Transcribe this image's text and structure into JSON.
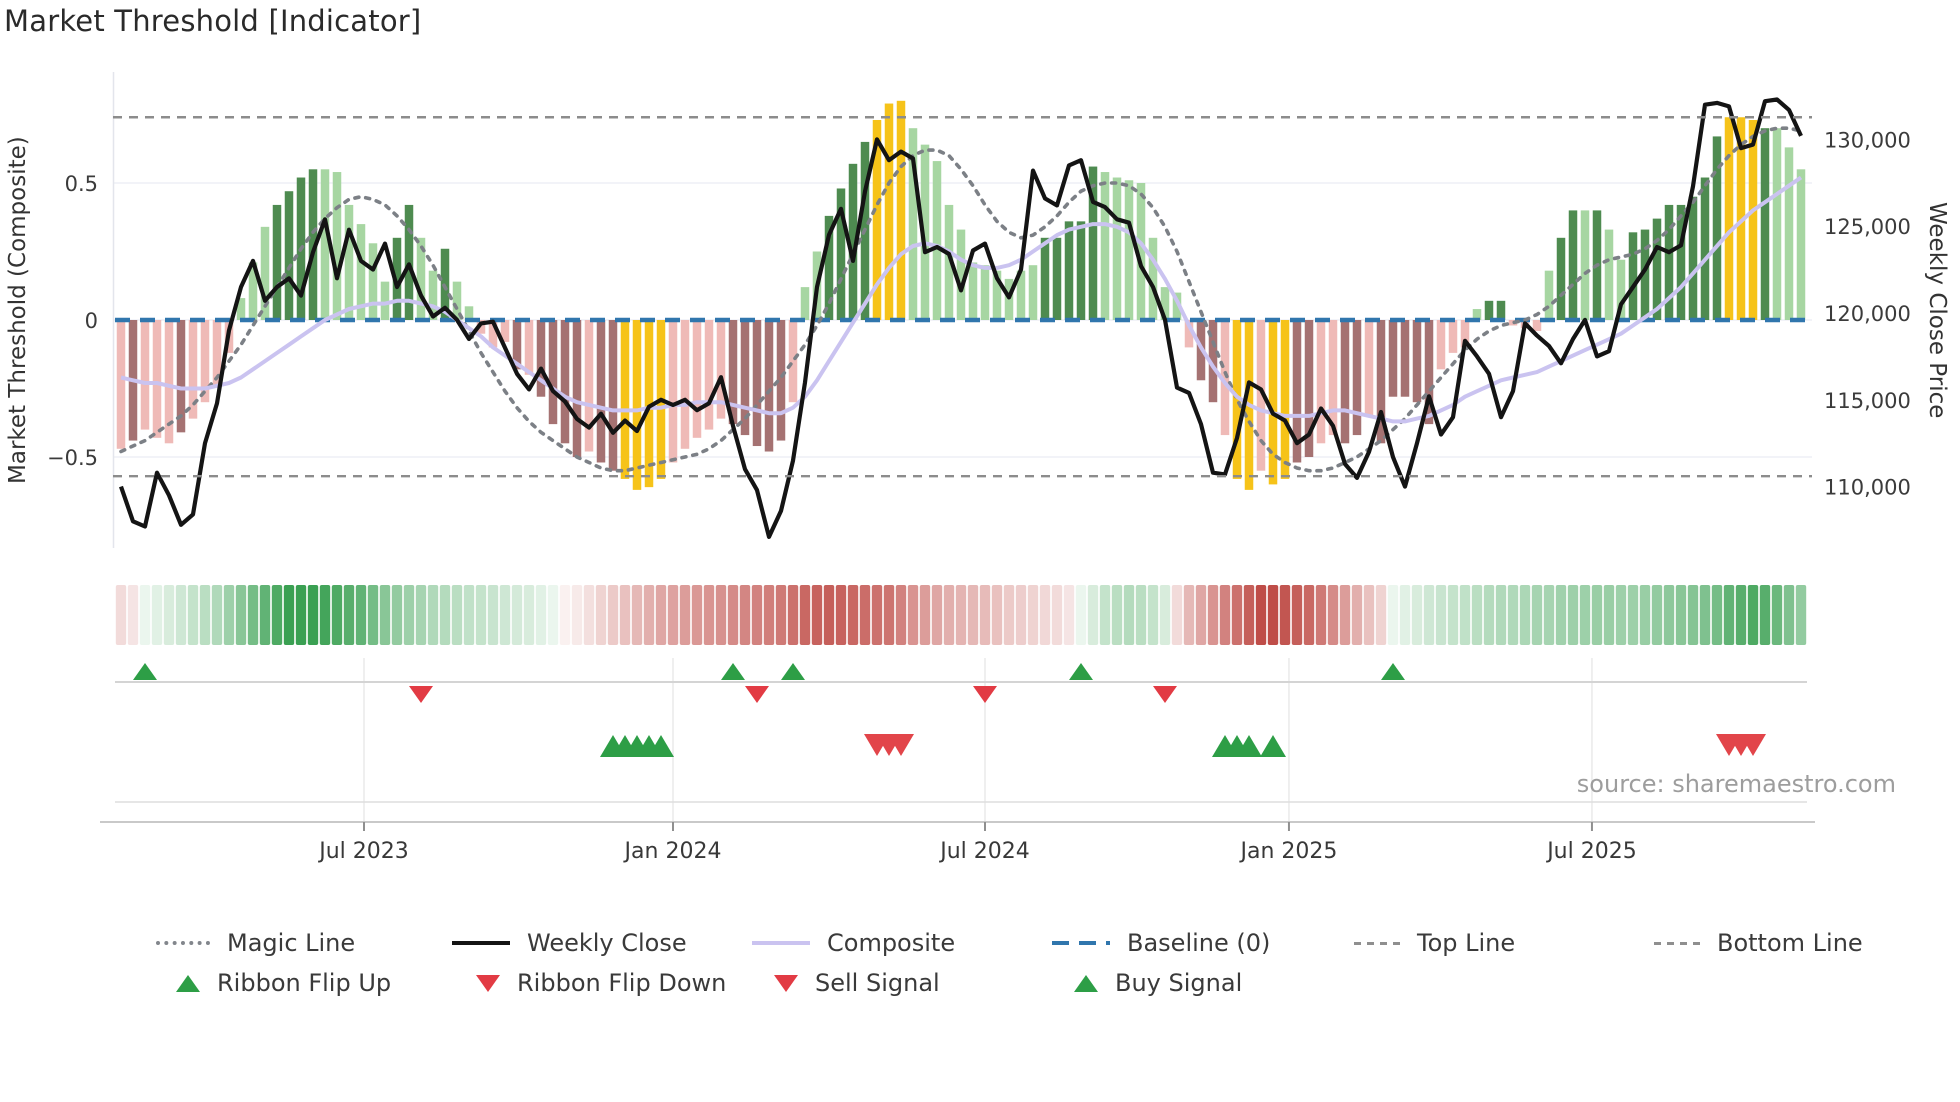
{
  "page": {
    "title": "Market Threshold [Indicator]",
    "source_note": "source: sharemaestro.com"
  },
  "legend": {
    "magic_line": "Magic Line",
    "weekly_close": "Weekly Close",
    "composite": "Composite",
    "baseline": "Baseline (0)",
    "top_line": "Top Line",
    "bottom_line": "Bottom Line",
    "ribbon_flip_up": "Ribbon Flip Up",
    "ribbon_flip_down": "Ribbon Flip Down",
    "sell_signal": "Sell Signal",
    "buy_signal": "Buy Signal"
  },
  "colors": {
    "bars": {
      "lg": "#a7d6a2",
      "dg": "#4e8b50",
      "pk": "#efbab7",
      "mv": "#a57272",
      "yl": "#f6c319"
    },
    "weekly_close": "#141414",
    "composite": "#cac3f0",
    "magic_line": "#7c8086",
    "baseline": "#3076ad",
    "threshold_line": "#8c8c8c",
    "grid": "#edeff5",
    "flip_up": "#2d9e46",
    "flip_down": "#e23b44",
    "buy": "#2d9e46",
    "sell": "#e2454a",
    "ribbon_green": "#3aa052",
    "ribbon_red": "#bf4d48",
    "tick_text": "#3b3b3b"
  },
  "chart_data": {
    "type": "bar",
    "title": "Market Threshold [Indicator]",
    "frequency": "weekly",
    "baseline": 0,
    "top_line": 0.74,
    "bottom_line": -0.57,
    "x": {
      "ticks": [
        {
          "pos": 20.25,
          "label": "Jul 2023"
        },
        {
          "pos": 46.0,
          "label": "Jan 2024"
        },
        {
          "pos": 72.0,
          "label": "Jul 2024"
        },
        {
          "pos": 97.33,
          "label": "Jan 2025"
        },
        {
          "pos": 122.58,
          "label": "Jul 2025"
        }
      ]
    },
    "y_left": {
      "title": "Market Threshold (Composite)",
      "range": [
        -0.85,
        0.9
      ],
      "ticks": [
        {
          "value": 0.5,
          "label": "0.5"
        },
        {
          "value": 0,
          "label": "0"
        },
        {
          "value": -0.5,
          "label": "−0.5"
        }
      ]
    },
    "y_right": {
      "title": "Weekly Close Price",
      "range": [
        106500,
        133500
      ],
      "ticks": [
        {
          "value": 130000,
          "label": "130,000"
        },
        {
          "value": 125000,
          "label": "125,000"
        },
        {
          "value": 120000,
          "label": "120,000"
        },
        {
          "value": 115000,
          "label": "115,000"
        },
        {
          "value": 110000,
          "label": "110,000"
        }
      ]
    },
    "bars": {
      "name": "Market Threshold (Composite)",
      "values": [
        -0.47,
        -0.44,
        -0.4,
        -0.43,
        -0.45,
        -0.41,
        -0.36,
        -0.3,
        -0.24,
        -0.12,
        0.08,
        0.21,
        0.34,
        0.42,
        0.47,
        0.52,
        0.55,
        0.55,
        0.54,
        0.42,
        0.35,
        0.28,
        0.14,
        0.3,
        0.42,
        0.3,
        0.18,
        0.26,
        0.14,
        0.05,
        -0.05,
        -0.1,
        -0.08,
        -0.18,
        -0.2,
        -0.28,
        -0.38,
        -0.45,
        -0.5,
        -0.48,
        -0.52,
        -0.55,
        -0.58,
        -0.62,
        -0.61,
        -0.58,
        -0.52,
        -0.47,
        -0.43,
        -0.4,
        -0.36,
        -0.38,
        -0.42,
        -0.46,
        -0.48,
        -0.44,
        -0.3,
        0.12,
        0.25,
        0.38,
        0.48,
        0.57,
        0.65,
        0.73,
        0.79,
        0.8,
        0.7,
        0.64,
        0.58,
        0.42,
        0.33,
        0.21,
        0.2,
        0.18,
        0.15,
        0.18,
        0.2,
        0.3,
        0.3,
        0.36,
        0.36,
        0.56,
        0.54,
        0.52,
        0.51,
        0.5,
        0.3,
        0.12,
        0.1,
        -0.1,
        -0.22,
        -0.3,
        -0.42,
        -0.58,
        -0.62,
        -0.55,
        -0.6,
        -0.58,
        -0.52,
        -0.5,
        -0.45,
        -0.42,
        -0.45,
        -0.42,
        -0.35,
        -0.45,
        -0.28,
        -0.28,
        -0.3,
        -0.38,
        -0.18,
        -0.12,
        -0.1,
        0.04,
        0.07,
        0.07,
        -0.02,
        -0.03,
        -0.04,
        0.18,
        0.3,
        0.4,
        0.4,
        0.4,
        0.33,
        0.22,
        0.32,
        0.33,
        0.37,
        0.42,
        0.42,
        0.45,
        0.52,
        0.67,
        0.74,
        0.74,
        0.73,
        0.7,
        0.7,
        0.63,
        0.55
      ],
      "shades": [
        "pk",
        "mv",
        "pk",
        "pk",
        "pk",
        "mv",
        "pk",
        "pk",
        "pk",
        "pk",
        "lg",
        "lg",
        "lg",
        "dg",
        "dg",
        "dg",
        "dg",
        "lg",
        "lg",
        "lg",
        "lg",
        "lg",
        "lg",
        "dg",
        "dg",
        "lg",
        "lg",
        "dg",
        "lg",
        "lg",
        "pk",
        "pk",
        "pk",
        "mv",
        "pk",
        "mv",
        "mv",
        "mv",
        "mv",
        "pk",
        "mv",
        "mv",
        "yl",
        "yl",
        "yl",
        "yl",
        "pk",
        "pk",
        "pk",
        "pk",
        "pk",
        "mv",
        "mv",
        "mv",
        "mv",
        "mv",
        "pk",
        "lg",
        "lg",
        "dg",
        "dg",
        "dg",
        "dg",
        "yl",
        "yl",
        "yl",
        "lg",
        "lg",
        "lg",
        "lg",
        "lg",
        "lg",
        "lg",
        "lg",
        "lg",
        "lg",
        "lg",
        "dg",
        "dg",
        "dg",
        "dg",
        "dg",
        "lg",
        "lg",
        "lg",
        "lg",
        "lg",
        "lg",
        "lg",
        "pk",
        "mv",
        "mv",
        "pk",
        "yl",
        "yl",
        "pk",
        "yl",
        "yl",
        "mv",
        "mv",
        "pk",
        "pk",
        "mv",
        "mv",
        "pk",
        "mv",
        "mv",
        "mv",
        "mv",
        "mv",
        "pk",
        "pk",
        "pk",
        "lg",
        "dg",
        "dg",
        "pk",
        "pk",
        "pk",
        "lg",
        "dg",
        "dg",
        "lg",
        "dg",
        "lg",
        "lg",
        "dg",
        "dg",
        "dg",
        "dg",
        "dg",
        "dg",
        "dg",
        "dg",
        "yl",
        "yl",
        "yl",
        "dg",
        "lg",
        "lg",
        "lg"
      ]
    },
    "lines": {
      "weekly_close": [
        110000,
        108000,
        107700,
        110800,
        109500,
        107800,
        108400,
        112500,
        114800,
        119000,
        121500,
        123000,
        120700,
        121500,
        122000,
        121000,
        123500,
        125400,
        122000,
        124800,
        123000,
        122500,
        124000,
        121500,
        122800,
        121000,
        119800,
        120300,
        119600,
        118500,
        119400,
        119500,
        118000,
        116500,
        115600,
        116800,
        115500,
        114900,
        113900,
        113400,
        114200,
        113100,
        113800,
        113200,
        114600,
        115000,
        114700,
        115000,
        114400,
        114800,
        116300,
        113500,
        111000,
        109800,
        107100,
        108600,
        111500,
        116000,
        121500,
        124500,
        126000,
        123000,
        127000,
        130000,
        128800,
        129300,
        128900,
        123500,
        123800,
        123400,
        121300,
        123600,
        124000,
        122000,
        120900,
        122500,
        128200,
        126600,
        126200,
        128500,
        128800,
        126400,
        126100,
        125400,
        125200,
        122700,
        121500,
        119600,
        115700,
        115400,
        113600,
        110800,
        110700,
        112800,
        116000,
        115600,
        114200,
        113800,
        112500,
        113000,
        114500,
        113500,
        111300,
        110500,
        112000,
        114300,
        111700,
        110000,
        112500,
        115200,
        113000,
        114000,
        118400,
        117500,
        116500,
        114000,
        115500,
        119400,
        118700,
        118100,
        117100,
        118500,
        119600,
        117500,
        117800,
        120500,
        121500,
        122500,
        123800,
        123500,
        123900,
        127300,
        132000,
        132100,
        131900,
        129500,
        129700,
        132200,
        132300,
        131700,
        130200
      ],
      "composite": [
        -0.21,
        -0.22,
        -0.23,
        -0.23,
        -0.24,
        -0.25,
        -0.25,
        -0.25,
        -0.24,
        -0.23,
        -0.21,
        -0.18,
        -0.15,
        -0.12,
        -0.09,
        -0.06,
        -0.03,
        0.0,
        0.02,
        0.04,
        0.05,
        0.06,
        0.06,
        0.07,
        0.07,
        0.06,
        0.05,
        0.03,
        0.0,
        -0.03,
        -0.06,
        -0.1,
        -0.13,
        -0.16,
        -0.19,
        -0.22,
        -0.25,
        -0.28,
        -0.3,
        -0.31,
        -0.32,
        -0.33,
        -0.33,
        -0.33,
        -0.32,
        -0.32,
        -0.31,
        -0.31,
        -0.3,
        -0.3,
        -0.3,
        -0.31,
        -0.32,
        -0.33,
        -0.34,
        -0.34,
        -0.32,
        -0.28,
        -0.22,
        -0.15,
        -0.08,
        -0.01,
        0.06,
        0.13,
        0.19,
        0.24,
        0.27,
        0.28,
        0.27,
        0.25,
        0.22,
        0.2,
        0.19,
        0.19,
        0.2,
        0.22,
        0.25,
        0.28,
        0.31,
        0.33,
        0.34,
        0.35,
        0.35,
        0.34,
        0.32,
        0.28,
        0.22,
        0.15,
        0.07,
        -0.02,
        -0.1,
        -0.17,
        -0.23,
        -0.28,
        -0.31,
        -0.33,
        -0.34,
        -0.35,
        -0.35,
        -0.35,
        -0.34,
        -0.33,
        -0.33,
        -0.34,
        -0.35,
        -0.36,
        -0.37,
        -0.37,
        -0.36,
        -0.35,
        -0.33,
        -0.31,
        -0.28,
        -0.26,
        -0.24,
        -0.22,
        -0.21,
        -0.2,
        -0.19,
        -0.17,
        -0.15,
        -0.13,
        -0.11,
        -0.09,
        -0.07,
        -0.05,
        -0.02,
        0.01,
        0.04,
        0.08,
        0.12,
        0.17,
        0.22,
        0.27,
        0.32,
        0.36,
        0.4,
        0.43,
        0.46,
        0.49,
        0.52
      ],
      "magic_line": [
        -0.48,
        -0.46,
        -0.44,
        -0.41,
        -0.38,
        -0.35,
        -0.31,
        -0.26,
        -0.21,
        -0.15,
        -0.09,
        -0.02,
        0.05,
        0.12,
        0.19,
        0.26,
        0.32,
        0.37,
        0.41,
        0.44,
        0.45,
        0.44,
        0.42,
        0.38,
        0.33,
        0.27,
        0.2,
        0.12,
        0.04,
        -0.04,
        -0.12,
        -0.19,
        -0.26,
        -0.32,
        -0.37,
        -0.41,
        -0.44,
        -0.47,
        -0.5,
        -0.52,
        -0.54,
        -0.55,
        -0.55,
        -0.54,
        -0.53,
        -0.52,
        -0.51,
        -0.5,
        -0.49,
        -0.47,
        -0.44,
        -0.4,
        -0.36,
        -0.31,
        -0.26,
        -0.21,
        -0.15,
        -0.09,
        -0.02,
        0.06,
        0.15,
        0.24,
        0.33,
        0.42,
        0.5,
        0.56,
        0.6,
        0.62,
        0.62,
        0.6,
        0.55,
        0.49,
        0.42,
        0.36,
        0.32,
        0.3,
        0.31,
        0.34,
        0.38,
        0.43,
        0.47,
        0.49,
        0.5,
        0.5,
        0.49,
        0.46,
        0.41,
        0.34,
        0.25,
        0.14,
        0.03,
        -0.08,
        -0.19,
        -0.29,
        -0.37,
        -0.44,
        -0.49,
        -0.52,
        -0.54,
        -0.55,
        -0.55,
        -0.54,
        -0.52,
        -0.5,
        -0.47,
        -0.44,
        -0.4,
        -0.36,
        -0.31,
        -0.26,
        -0.21,
        -0.16,
        -0.11,
        -0.07,
        -0.04,
        -0.02,
        -0.01,
        0.0,
        0.02,
        0.05,
        0.09,
        0.13,
        0.17,
        0.2,
        0.22,
        0.23,
        0.24,
        0.26,
        0.29,
        0.33,
        0.38,
        0.43,
        0.49,
        0.55,
        0.6,
        0.64,
        0.67,
        0.69,
        0.7,
        0.7,
        0.69
      ]
    },
    "ribbon": [
      -0.2,
      -0.15,
      0.1,
      0.15,
      0.2,
      0.25,
      0.3,
      0.35,
      0.4,
      0.5,
      0.6,
      0.7,
      0.8,
      0.9,
      1.0,
      1.0,
      1.0,
      0.95,
      0.9,
      0.85,
      0.8,
      0.7,
      0.6,
      0.55,
      0.5,
      0.45,
      0.4,
      0.38,
      0.35,
      0.32,
      0.3,
      0.28,
      0.25,
      0.22,
      0.2,
      0.15,
      0.1,
      -0.08,
      -0.12,
      -0.18,
      -0.25,
      -0.3,
      -0.35,
      -0.4,
      -0.45,
      -0.5,
      -0.52,
      -0.55,
      -0.58,
      -0.6,
      -0.62,
      -0.65,
      -0.68,
      -0.7,
      -0.72,
      -0.75,
      -0.8,
      -0.85,
      -0.88,
      -0.9,
      -0.88,
      -0.85,
      -0.82,
      -0.8,
      -0.78,
      -0.7,
      -0.6,
      -0.55,
      -0.5,
      -0.45,
      -0.42,
      -0.4,
      -0.38,
      -0.35,
      -0.3,
      -0.28,
      -0.25,
      -0.22,
      -0.2,
      -0.15,
      0.1,
      0.2,
      0.3,
      0.35,
      0.38,
      0.35,
      0.3,
      0.2,
      -0.2,
      -0.4,
      -0.5,
      -0.6,
      -0.7,
      -0.8,
      -0.9,
      -1.0,
      -1.0,
      -0.95,
      -0.9,
      -0.85,
      -0.75,
      -0.65,
      -0.55,
      -0.45,
      -0.35,
      -0.25,
      0.1,
      0.15,
      0.2,
      0.25,
      0.28,
      0.3,
      0.32,
      0.35,
      0.38,
      0.4,
      0.4,
      0.42,
      0.45,
      0.45,
      0.48,
      0.5,
      0.5,
      0.52,
      0.52,
      0.5,
      0.5,
      0.52,
      0.55,
      0.58,
      0.6,
      0.62,
      0.65,
      0.7,
      0.8,
      0.85,
      0.9,
      0.85,
      0.75,
      0.65,
      0.55
    ],
    "signals": {
      "ribbon_flip_up": [
        2,
        51,
        56,
        80,
        106
      ],
      "ribbon_flip_down": [
        25,
        53,
        72,
        87
      ],
      "buy": [
        41,
        42,
        43,
        44,
        45,
        92,
        93,
        94,
        96
      ],
      "sell": [
        63,
        64,
        65,
        134,
        135,
        136
      ]
    }
  }
}
